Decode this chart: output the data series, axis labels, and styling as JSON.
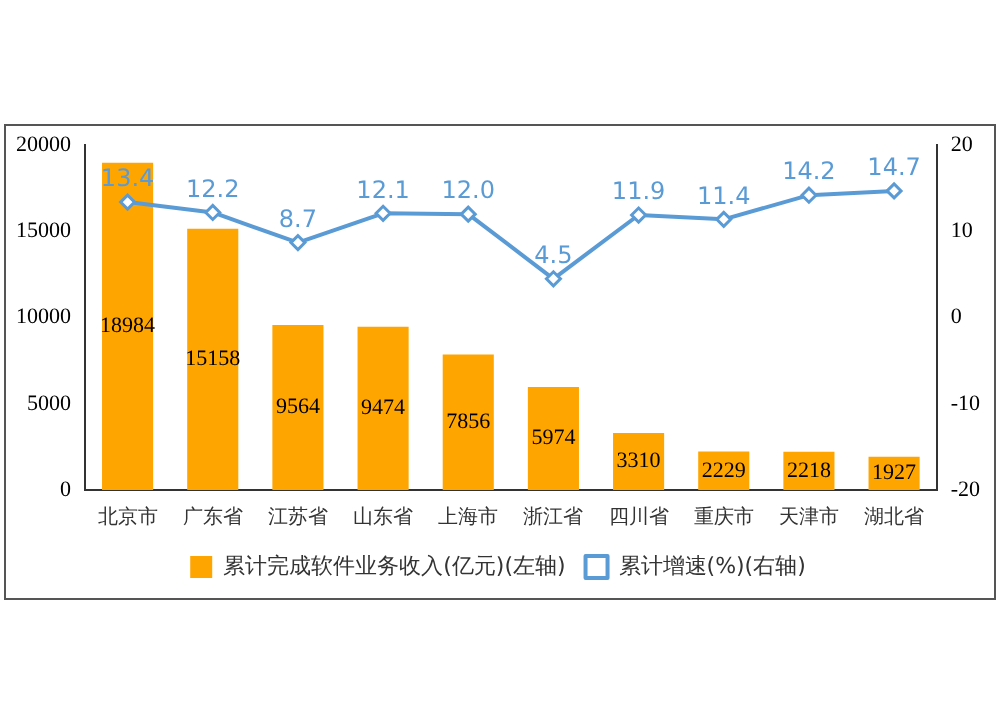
{
  "chart_data": {
    "type": "bar",
    "categories": [
      "北京市",
      "广东省",
      "江苏省",
      "山东省",
      "上海市",
      "浙江省",
      "四川省",
      "重庆市",
      "天津市",
      "湖北省"
    ],
    "series": [
      {
        "name": "累计完成软件业务收入(亿元)(左轴)",
        "color": "#ffa500",
        "values": [
          18984,
          15158,
          9564,
          9474,
          7856,
          5974,
          3310,
          2229,
          2218,
          1927
        ]
      },
      {
        "name": "累计增速(%)(右轴)",
        "type": "line",
        "axis": "y2",
        "color": "#5b9bd5",
        "marker": "diamond",
        "values": [
          13.4,
          12.2,
          8.7,
          12.1,
          12.0,
          4.5,
          11.9,
          11.4,
          14.2,
          14.7
        ],
        "value_labels": [
          "13.4",
          "12.2",
          "8.7",
          "12.1",
          "12.0",
          "4.5",
          "11.9",
          "11.4",
          "14.2",
          "14.7"
        ]
      }
    ],
    "ylim": [
      0,
      20000
    ],
    "yticks": [
      0,
      5000,
      10000,
      15000,
      20000
    ],
    "y2lim": [
      -20,
      20
    ],
    "y2ticks": [
      -20,
      -10,
      0,
      10,
      20
    ],
    "data_labels": true,
    "legend": "bottom",
    "grid": false
  }
}
